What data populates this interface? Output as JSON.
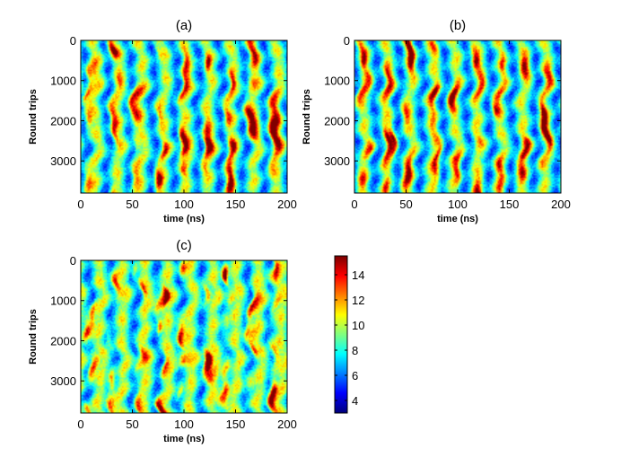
{
  "chart_data": [
    {
      "type": "heatmap",
      "title": "(a)",
      "xlabel": "time (ns)",
      "ylabel": "Round trips",
      "xlim": [
        0,
        200
      ],
      "ylim": [
        0,
        3800
      ],
      "xticks": [
        0,
        50,
        100,
        150,
        200
      ],
      "yticks": [
        0,
        1000,
        2000,
        3000
      ],
      "n_stripes": 10,
      "stripe_period_ns": 22,
      "value_range": [
        3,
        15
      ],
      "seed": 11
    },
    {
      "type": "heatmap",
      "title": "(b)",
      "xlabel": "time (ns)",
      "ylabel": "Round trips",
      "xlim": [
        0,
        200
      ],
      "ylim": [
        0,
        3800
      ],
      "xticks": [
        0,
        50,
        100,
        150,
        200
      ],
      "yticks": [
        0,
        1000,
        2000,
        3000
      ],
      "n_stripes": 10,
      "stripe_period_ns": 22,
      "value_range": [
        3,
        15
      ],
      "seed": 23
    },
    {
      "type": "heatmap",
      "title": "(c)",
      "xlabel": "time (ns)",
      "ylabel": "Round trips",
      "xlim": [
        0,
        200
      ],
      "ylim": [
        0,
        3800
      ],
      "xticks": [
        0,
        50,
        100,
        150,
        200
      ],
      "yticks": [
        0,
        1000,
        2000,
        3000
      ],
      "n_stripes": 10,
      "stripe_period_ns": 22,
      "value_range": [
        3,
        15
      ],
      "seed": 37
    }
  ],
  "colorbar": {
    "range": [
      3,
      15.5
    ],
    "ticks": [
      4,
      6,
      8,
      10,
      12,
      14
    ],
    "colormap": "jet"
  }
}
